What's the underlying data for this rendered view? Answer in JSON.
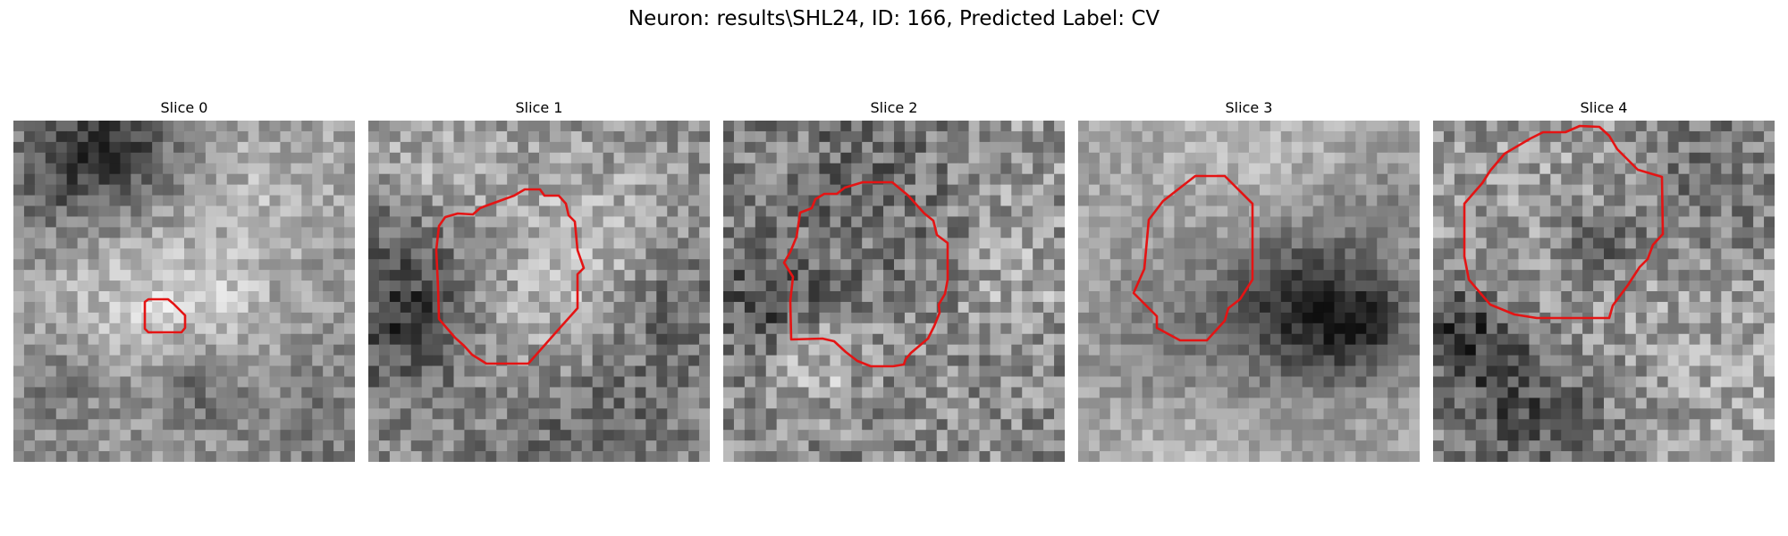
{
  "figure": {
    "title": "Neuron: results\\SHL24, ID: 166, Predicted Label: CV"
  },
  "colors": {
    "contour": "#e41414",
    "background": "#ffffff"
  },
  "slices": [
    {
      "label": "Slice 0"
    },
    {
      "label": "Slice 1"
    },
    {
      "label": "Slice 2"
    },
    {
      "label": "Slice 3"
    },
    {
      "label": "Slice 4"
    }
  ]
}
